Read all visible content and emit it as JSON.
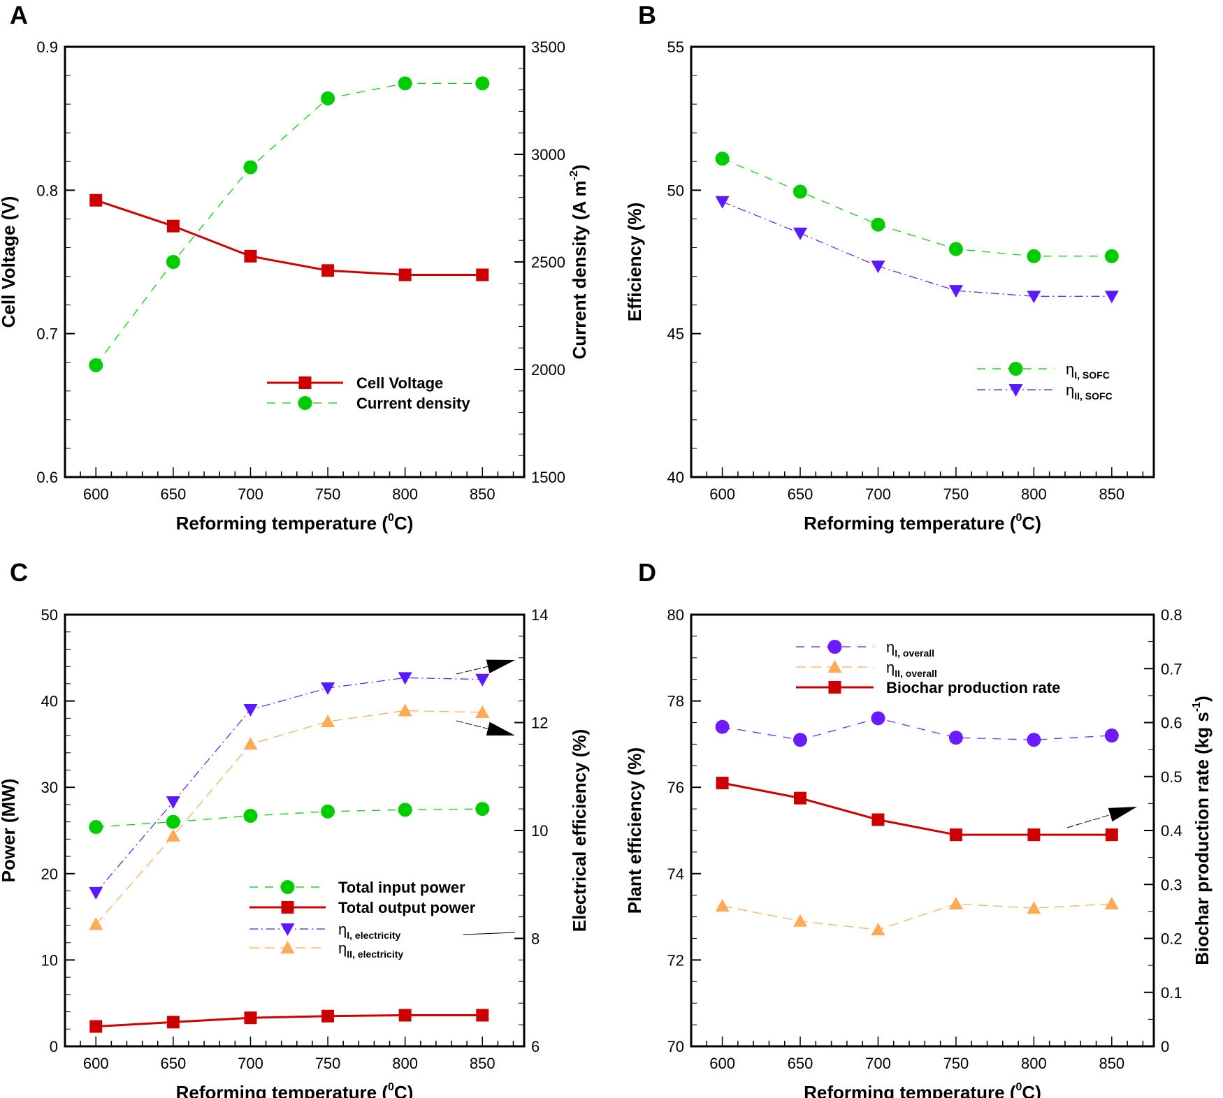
{
  "chart_data": [
    {
      "panel": "A",
      "type": "line",
      "x": [
        600,
        650,
        700,
        750,
        800,
        850
      ],
      "xlim": [
        580,
        877
      ],
      "xticks": [
        600,
        650,
        700,
        750,
        800,
        850
      ],
      "xlabel": "Reforming temperature (",
      "xlabel_sup": "0",
      "xlabel_end": "C)",
      "ylabel_left": "Cell Voltage (V)",
      "ylim_left": [
        0.6,
        0.9
      ],
      "yticks_left": [
        "0.6",
        "0.7",
        "0.8",
        "0.9"
      ],
      "ylabel_right": "Current density (A m",
      "ylabel_right_sup": "-2",
      "ylabel_right_end": ")",
      "ylim_right": [
        1500,
        3500
      ],
      "yticks_right": [
        "1500",
        "2000",
        "2500",
        "3000",
        "3500"
      ],
      "series": [
        {
          "name": "Cell Voltage",
          "axis": "left",
          "marker": "square",
          "color": "#cc0000",
          "dash": "",
          "values": [
            0.793,
            0.775,
            0.754,
            0.744,
            0.741,
            0.741
          ]
        },
        {
          "name": "Current density",
          "axis": "right",
          "marker": "circle",
          "color": "#00cc00",
          "dash": "12 10",
          "values": [
            2020,
            2500,
            2940,
            3260,
            3330,
            3330
          ]
        }
      ]
    },
    {
      "panel": "B",
      "type": "line",
      "x": [
        600,
        650,
        700,
        750,
        800,
        850
      ],
      "xlim": [
        580,
        877
      ],
      "xticks": [
        600,
        650,
        700,
        750,
        800,
        850
      ],
      "xlabel": "Reforming temperature (",
      "xlabel_sup": "0",
      "xlabel_end": "C)",
      "ylabel_left": "Efficiency (%)",
      "ylim_left": [
        40,
        55
      ],
      "yticks_left": [
        "40",
        "45",
        "50",
        "55"
      ],
      "series": [
        {
          "name": "η",
          "sub": "I, SOFC",
          "axis": "left",
          "marker": "circle",
          "color": "#00cc00",
          "dash": "12 10",
          "values": [
            51.1,
            49.95,
            48.8,
            47.95,
            47.7,
            47.7
          ]
        },
        {
          "name": "η",
          "sub": "II, SOFC",
          "axis": "left",
          "marker": "tri-down",
          "color": "#5a1aff",
          "dash": "12 5 2 5",
          "values": [
            49.6,
            48.5,
            47.35,
            46.5,
            46.3,
            46.3
          ]
        }
      ]
    },
    {
      "panel": "C",
      "type": "line",
      "x": [
        600,
        650,
        700,
        750,
        800,
        850
      ],
      "xlim": [
        580,
        877
      ],
      "xticks": [
        600,
        650,
        700,
        750,
        800,
        850
      ],
      "xlabel": "Reforming temperature (",
      "xlabel_sup": "0",
      "xlabel_end": "C)",
      "ylabel_left": "Power (MW)",
      "ylim_left": [
        0,
        50
      ],
      "yticks_left": [
        "0",
        "10",
        "20",
        "30",
        "40",
        "50"
      ],
      "ylabel_right": "Electrical efficiency (%)",
      "ylim_right": [
        6,
        14
      ],
      "yticks_right": [
        "6",
        "8",
        "10",
        "12",
        "14"
      ],
      "series": [
        {
          "name": "Total input power",
          "axis": "left",
          "marker": "circle",
          "color": "#00cc00",
          "dash": "12 10",
          "values": [
            25.4,
            26.0,
            26.7,
            27.2,
            27.4,
            27.5
          ]
        },
        {
          "name": "Total output power",
          "axis": "left",
          "marker": "square",
          "color": "#cc0000",
          "dash": "",
          "values": [
            2.3,
            2.8,
            3.3,
            3.5,
            3.6,
            3.6
          ]
        },
        {
          "name": "η",
          "sub": "I, electricity",
          "axis": "right",
          "marker": "tri-down",
          "color": "#5a1aff",
          "dash": "12 5 2 5",
          "values": [
            8.85,
            10.53,
            12.24,
            12.64,
            12.83,
            12.8
          ]
        },
        {
          "name": "η",
          "sub": "II, electricity",
          "axis": "right",
          "marker": "tri-up",
          "color": "#ffaa55",
          "dash": "14 8",
          "values": [
            8.26,
            9.9,
            11.6,
            12.02,
            12.22,
            12.19
          ]
        }
      ]
    },
    {
      "panel": "D",
      "type": "line",
      "x": [
        600,
        650,
        700,
        750,
        800,
        850
      ],
      "xlim": [
        580,
        877
      ],
      "xticks": [
        600,
        650,
        700,
        750,
        800,
        850
      ],
      "xlabel": "Reforming temperature (",
      "xlabel_sup": "0",
      "xlabel_end": "C)",
      "ylabel_left": "Plant efficiency (%)",
      "ylim_left": [
        70,
        80
      ],
      "yticks_left": [
        "70",
        "72",
        "74",
        "76",
        "78",
        "80"
      ],
      "ylabel_right": "Biochar production rate (kg s",
      "ylabel_right_sup": "-1",
      "ylabel_right_end": ")",
      "ylim_right": [
        0,
        0.8
      ],
      "yticks_right": [
        "0",
        "0.1",
        "0.2",
        "0.3",
        "0.4",
        "0.5",
        "0.6",
        "0.7",
        "0.8"
      ],
      "series": [
        {
          "name": "η",
          "sub": "I, overall",
          "axis": "left",
          "marker": "circle",
          "color": "#6a1bff",
          "dash": "12 10",
          "values": [
            77.4,
            77.1,
            77.6,
            77.15,
            77.1,
            77.2
          ]
        },
        {
          "name": "η",
          "sub": "II, overall",
          "axis": "left",
          "marker": "tri-up",
          "color": "#ffaa55",
          "dash": "14 8",
          "values": [
            73.25,
            72.9,
            72.7,
            73.3,
            73.2,
            73.3
          ]
        },
        {
          "name": "Biochar production rate",
          "axis": "right",
          "marker": "square",
          "color": "#cc0000",
          "dash": "",
          "values": [
            0.488,
            0.46,
            0.42,
            0.392,
            0.392,
            0.392
          ]
        }
      ]
    }
  ]
}
